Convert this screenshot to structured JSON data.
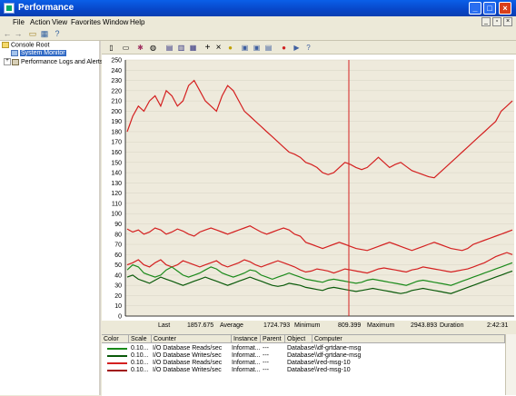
{
  "window": {
    "title": "Performance"
  },
  "menu": [
    "File",
    "Action",
    "View",
    "Favorites",
    "Window",
    "Help"
  ],
  "tree": {
    "root": "Console Root",
    "items": [
      "System Monitor",
      "Performance Logs and Alerts"
    ]
  },
  "stats": {
    "last_label": "Last",
    "last": "1857.675",
    "average_label": "Average",
    "average": "1724.793",
    "minimum_label": "Minimum",
    "minimum": "809.399",
    "maximum_label": "Maximum",
    "maximum": "2943.893",
    "duration_label": "Duration",
    "duration": "2:42:31"
  },
  "legend": {
    "headers": [
      "Color",
      "Scale",
      "Counter",
      "Instance",
      "Parent",
      "Object",
      "Computer"
    ],
    "rows": [
      {
        "color": "#1a8a1a",
        "scale": "0.10...",
        "counter": "I/O Database Reads/sec",
        "instance": "Informat...",
        "parent": "---",
        "object": "Database",
        "computer": "\\\\df-grtdane-msg"
      },
      {
        "color": "#0a5a0a",
        "scale": "0.10...",
        "counter": "I/O Database Writes/sec",
        "instance": "Informat...",
        "parent": "---",
        "object": "Database",
        "computer": "\\\\df-grtdane-msg"
      },
      {
        "color": "#d42020",
        "scale": "0.10...",
        "counter": "I/O Database Reads/sec",
        "instance": "Informat...",
        "parent": "---",
        "object": "Database",
        "computer": "\\\\red-msg-10"
      },
      {
        "color": "#a01010",
        "scale": "0.10...",
        "counter": "I/O Database Writes/sec",
        "instance": "Informat...",
        "parent": "---",
        "object": "Database",
        "computer": "\\\\red-msg-10"
      }
    ]
  },
  "chart_data": {
    "type": "line",
    "ylim": [
      0,
      250
    ],
    "yticks": [
      0,
      10,
      20,
      30,
      40,
      50,
      60,
      70,
      80,
      90,
      100,
      110,
      120,
      130,
      140,
      150,
      160,
      170,
      180,
      190,
      200,
      210,
      220,
      230,
      240,
      250
    ],
    "grid": true,
    "series": [
      {
        "color": "#d42020",
        "values": [
          180,
          195,
          205,
          200,
          210,
          215,
          205,
          220,
          215,
          205,
          210,
          225,
          230,
          220,
          210,
          205,
          200,
          215,
          225,
          220,
          210,
          200,
          195,
          190,
          185,
          180,
          175,
          170,
          165,
          160,
          158,
          155,
          150,
          148,
          145,
          140,
          138,
          140,
          145,
          150,
          148,
          145,
          143,
          145,
          150,
          155,
          150,
          145,
          148,
          150,
          146,
          142,
          140,
          138,
          136,
          135,
          140,
          145,
          150,
          155,
          160,
          165,
          170,
          175,
          180,
          185,
          190,
          200,
          205,
          210
        ]
      },
      {
        "color": "#d42020",
        "values": [
          85,
          82,
          84,
          80,
          82,
          86,
          84,
          80,
          82,
          85,
          83,
          80,
          78,
          82,
          84,
          86,
          84,
          82,
          80,
          82,
          84,
          86,
          88,
          85,
          82,
          80,
          82,
          84,
          86,
          84,
          80,
          78,
          72,
          70,
          68,
          66,
          68,
          70,
          72,
          70,
          68,
          66,
          65,
          64,
          66,
          68,
          70,
          72,
          70,
          68,
          66,
          64,
          66,
          68,
          70,
          72,
          70,
          68,
          66,
          65,
          64,
          66,
          70,
          72,
          74,
          76,
          78,
          80,
          82,
          84
        ]
      },
      {
        "color": "#d42020",
        "values": [
          50,
          52,
          55,
          50,
          48,
          52,
          55,
          50,
          48,
          50,
          54,
          52,
          50,
          48,
          50,
          52,
          54,
          50,
          48,
          50,
          52,
          55,
          53,
          50,
          48,
          50,
          52,
          54,
          52,
          50,
          48,
          45,
          43,
          44,
          46,
          45,
          44,
          42,
          44,
          46,
          45,
          44,
          43,
          42,
          44,
          46,
          47,
          46,
          45,
          44,
          43,
          45,
          46,
          48,
          47,
          46,
          45,
          44,
          43,
          44,
          45,
          46,
          48,
          50,
          52,
          55,
          58,
          60,
          62,
          60
        ]
      },
      {
        "color": "#1a8a1a",
        "values": [
          45,
          50,
          48,
          42,
          40,
          38,
          40,
          45,
          48,
          44,
          40,
          38,
          40,
          42,
          45,
          48,
          46,
          42,
          40,
          38,
          40,
          42,
          45,
          44,
          40,
          38,
          36,
          38,
          40,
          42,
          40,
          38,
          36,
          35,
          34,
          33,
          35,
          36,
          35,
          34,
          33,
          32,
          33,
          35,
          36,
          35,
          34,
          33,
          32,
          31,
          30,
          32,
          34,
          35,
          34,
          33,
          32,
          31,
          30,
          32,
          34,
          36,
          38,
          40,
          42,
          44,
          46,
          48,
          50,
          52
        ]
      },
      {
        "color": "#0a5a0a",
        "values": [
          38,
          40,
          36,
          34,
          32,
          35,
          38,
          36,
          34,
          32,
          30,
          32,
          34,
          36,
          38,
          36,
          34,
          32,
          30,
          32,
          34,
          36,
          38,
          36,
          34,
          32,
          30,
          29,
          30,
          32,
          31,
          30,
          28,
          27,
          26,
          25,
          27,
          28,
          27,
          26,
          25,
          24,
          25,
          26,
          27,
          26,
          25,
          24,
          23,
          22,
          23,
          25,
          26,
          27,
          26,
          25,
          24,
          23,
          22,
          24,
          26,
          28,
          30,
          32,
          34,
          36,
          38,
          40,
          42,
          44
        ]
      }
    ]
  }
}
